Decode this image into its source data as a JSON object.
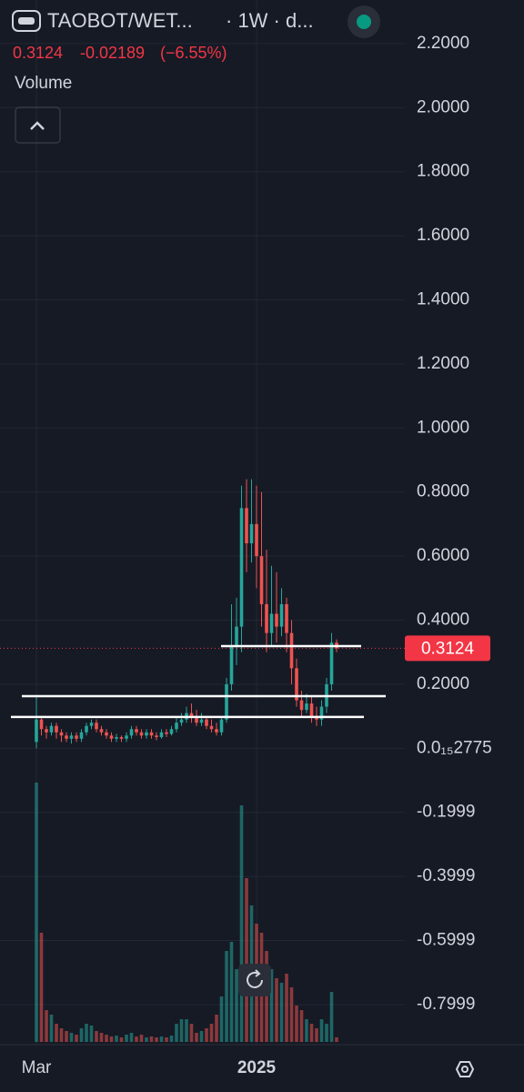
{
  "chart_data": {
    "type": "candlestick",
    "symbol": "TAOBOT/WET...",
    "interval": "· 1W · d...",
    "last_price": 0.3124,
    "change": -0.02189,
    "change_pct": {
      "value": -6.55,
      "label": "(−6.55%)"
    },
    "volume_label": "Volume",
    "up_color": "#26a69a",
    "down_color": "#ef5350",
    "categories": [
      "Mar",
      null,
      null,
      null,
      null,
      null,
      null,
      null,
      null,
      null,
      null,
      null,
      null,
      null,
      null,
      null,
      null,
      null,
      null,
      null,
      null,
      null,
      null,
      null,
      null,
      null,
      null,
      null,
      null,
      null,
      null,
      null,
      null,
      null,
      null,
      null,
      null,
      null,
      null,
      null,
      null,
      null,
      null,
      null,
      "2025",
      null,
      null,
      null,
      null,
      null,
      null,
      null,
      null,
      null,
      null,
      null,
      null,
      null,
      null,
      null,
      null
    ],
    "open": [
      0.02,
      0.09,
      0.06,
      0.05,
      0.07,
      0.05,
      0.04,
      0.03,
      0.04,
      0.03,
      0.05,
      0.07,
      0.08,
      0.06,
      0.05,
      0.04,
      0.03,
      0.035,
      0.03,
      0.04,
      0.06,
      0.05,
      0.04,
      0.05,
      0.04,
      0.035,
      0.05,
      0.045,
      0.06,
      0.08,
      0.09,
      0.11,
      0.1,
      0.08,
      0.09,
      0.07,
      0.06,
      0.05,
      0.09,
      0.2,
      0.32,
      0.38,
      0.75,
      0.64,
      0.7,
      0.6,
      0.45,
      0.36,
      0.42,
      0.38,
      0.45,
      0.36,
      0.25,
      0.15,
      0.12,
      0.14,
      0.1,
      0.09,
      0.13,
      0.2,
      0.33
    ],
    "high": [
      0.16,
      0.1,
      0.07,
      0.08,
      0.08,
      0.06,
      0.05,
      0.05,
      0.05,
      0.06,
      0.08,
      0.09,
      0.09,
      0.07,
      0.06,
      0.05,
      0.045,
      0.04,
      0.05,
      0.07,
      0.07,
      0.06,
      0.06,
      0.06,
      0.05,
      0.06,
      0.06,
      0.07,
      0.1,
      0.11,
      0.13,
      0.14,
      0.12,
      0.11,
      0.1,
      0.09,
      0.08,
      0.1,
      0.22,
      0.45,
      0.47,
      0.82,
      0.84,
      0.84,
      0.82,
      0.8,
      0.62,
      0.57,
      0.55,
      0.5,
      0.47,
      0.4,
      0.28,
      0.18,
      0.17,
      0.16,
      0.13,
      0.15,
      0.22,
      0.36,
      0.34
    ],
    "low": [
      0.0,
      0.04,
      0.03,
      0.04,
      0.03,
      0.02,
      0.02,
      0.015,
      0.02,
      0.02,
      0.04,
      0.06,
      0.05,
      0.04,
      0.03,
      0.02,
      0.02,
      0.02,
      0.02,
      0.03,
      0.04,
      0.03,
      0.03,
      0.03,
      0.025,
      0.03,
      0.035,
      0.04,
      0.05,
      0.07,
      0.08,
      0.08,
      0.07,
      0.07,
      0.06,
      0.05,
      0.04,
      0.04,
      0.08,
      0.18,
      0.26,
      0.3,
      0.55,
      0.58,
      0.5,
      0.38,
      0.3,
      0.32,
      0.33,
      0.35,
      0.3,
      0.2,
      0.13,
      0.1,
      0.11,
      0.08,
      0.07,
      0.07,
      0.11,
      0.18,
      0.3
    ],
    "close": [
      0.09,
      0.06,
      0.05,
      0.07,
      0.05,
      0.04,
      0.03,
      0.04,
      0.03,
      0.05,
      0.07,
      0.08,
      0.06,
      0.05,
      0.04,
      0.03,
      0.035,
      0.03,
      0.04,
      0.06,
      0.05,
      0.04,
      0.05,
      0.04,
      0.035,
      0.05,
      0.045,
      0.06,
      0.08,
      0.09,
      0.11,
      0.1,
      0.08,
      0.09,
      0.07,
      0.06,
      0.05,
      0.09,
      0.2,
      0.32,
      0.38,
      0.75,
      0.64,
      0.7,
      0.6,
      0.45,
      0.36,
      0.42,
      0.38,
      0.45,
      0.36,
      0.25,
      0.15,
      0.12,
      0.14,
      0.1,
      0.09,
      0.13,
      0.2,
      0.33,
      0.3124
    ],
    "volume": [
      285,
      120,
      35,
      30,
      20,
      15,
      12,
      10,
      8,
      15,
      20,
      18,
      12,
      10,
      8,
      6,
      7,
      5,
      8,
      10,
      6,
      8,
      5,
      6,
      5,
      6,
      5,
      7,
      20,
      25,
      25,
      20,
      10,
      12,
      15,
      20,
      30,
      50,
      100,
      110,
      80,
      260,
      180,
      150,
      130,
      120,
      100,
      80,
      70,
      65,
      75,
      60,
      40,
      35,
      25,
      20,
      15,
      25,
      20,
      55,
      5
    ],
    "levels": [
      0.319,
      0.163,
      0.098
    ],
    "ylim": [
      -0.9165,
      2.336
    ],
    "yticks": [
      {
        "value": 2.2,
        "label": "2.2000"
      },
      {
        "value": 2.0,
        "label": "2.0000"
      },
      {
        "value": 1.8,
        "label": "1.8000"
      },
      {
        "value": 1.6,
        "label": "1.6000"
      },
      {
        "value": 1.4,
        "label": "1.4000"
      },
      {
        "value": 1.2,
        "label": "1.2000"
      },
      {
        "value": 1.0,
        "label": "1.0000"
      },
      {
        "value": 0.8,
        "label": "0.8000"
      },
      {
        "value": 0.6,
        "label": "0.6000"
      },
      {
        "value": 0.4,
        "label": "0.4000"
      },
      {
        "value": 0.2,
        "label": "0.2000"
      },
      {
        "value": 2.775e-16,
        "label": "0.0₁₅2775"
      },
      -0.1999,
      -0.3999,
      -0.5999,
      -0.7999
    ],
    "grid": true
  }
}
